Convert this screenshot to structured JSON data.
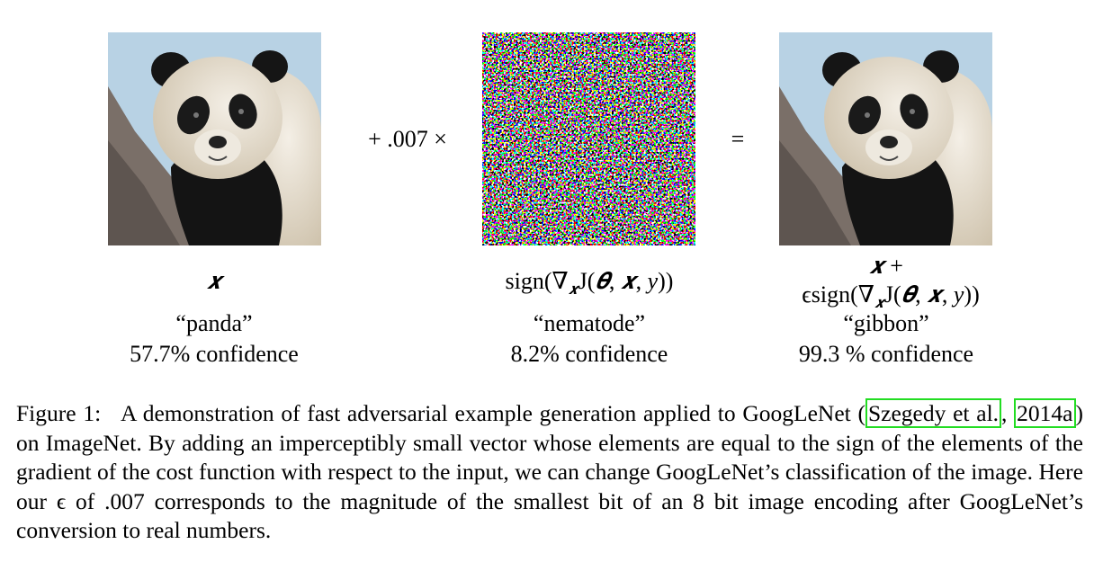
{
  "figure": {
    "operators": [
      "+ .007 ×",
      "="
    ],
    "panels": [
      {
        "math": [
          "𝒙"
        ],
        "class": "“panda”",
        "confidence": "57.7% confidence"
      },
      {
        "math": [
          "sign(∇",
          "𝒙",
          "J(",
          "𝜽",
          ", ",
          "𝒙",
          ", ",
          "y",
          "))"
        ],
        "class": "“nematode”",
        "confidence": "8.2% confidence"
      },
      {
        "math_line1": [
          "𝒙",
          " +"
        ],
        "math": [
          "ϵsign(∇",
          "𝒙",
          "J(",
          "𝜽",
          ", ",
          "𝒙",
          ", ",
          "y",
          "))"
        ],
        "class": "“gibbon”",
        "confidence": "99.3 % confidence"
      }
    ],
    "caption": {
      "label": "Figure 1:",
      "text_before": "A demonstration of fast adversarial example generation applied to GoogLeNet (",
      "cite_author": "Szegedy et al.",
      "separator": ", ",
      "cite_year": "2014a",
      "text_after": ") on ImageNet. By adding an imperceptibly small vector whose elements are equal to the sign of the elements of the gradient of the cost function with respect to the input, we can change GoogLeNet’s classification of the image. Here our ϵ of .007 corresponds to the magnitude of the smallest bit of an 8 bit image encoding after GoogLeNet’s conversion to real numbers."
    }
  }
}
